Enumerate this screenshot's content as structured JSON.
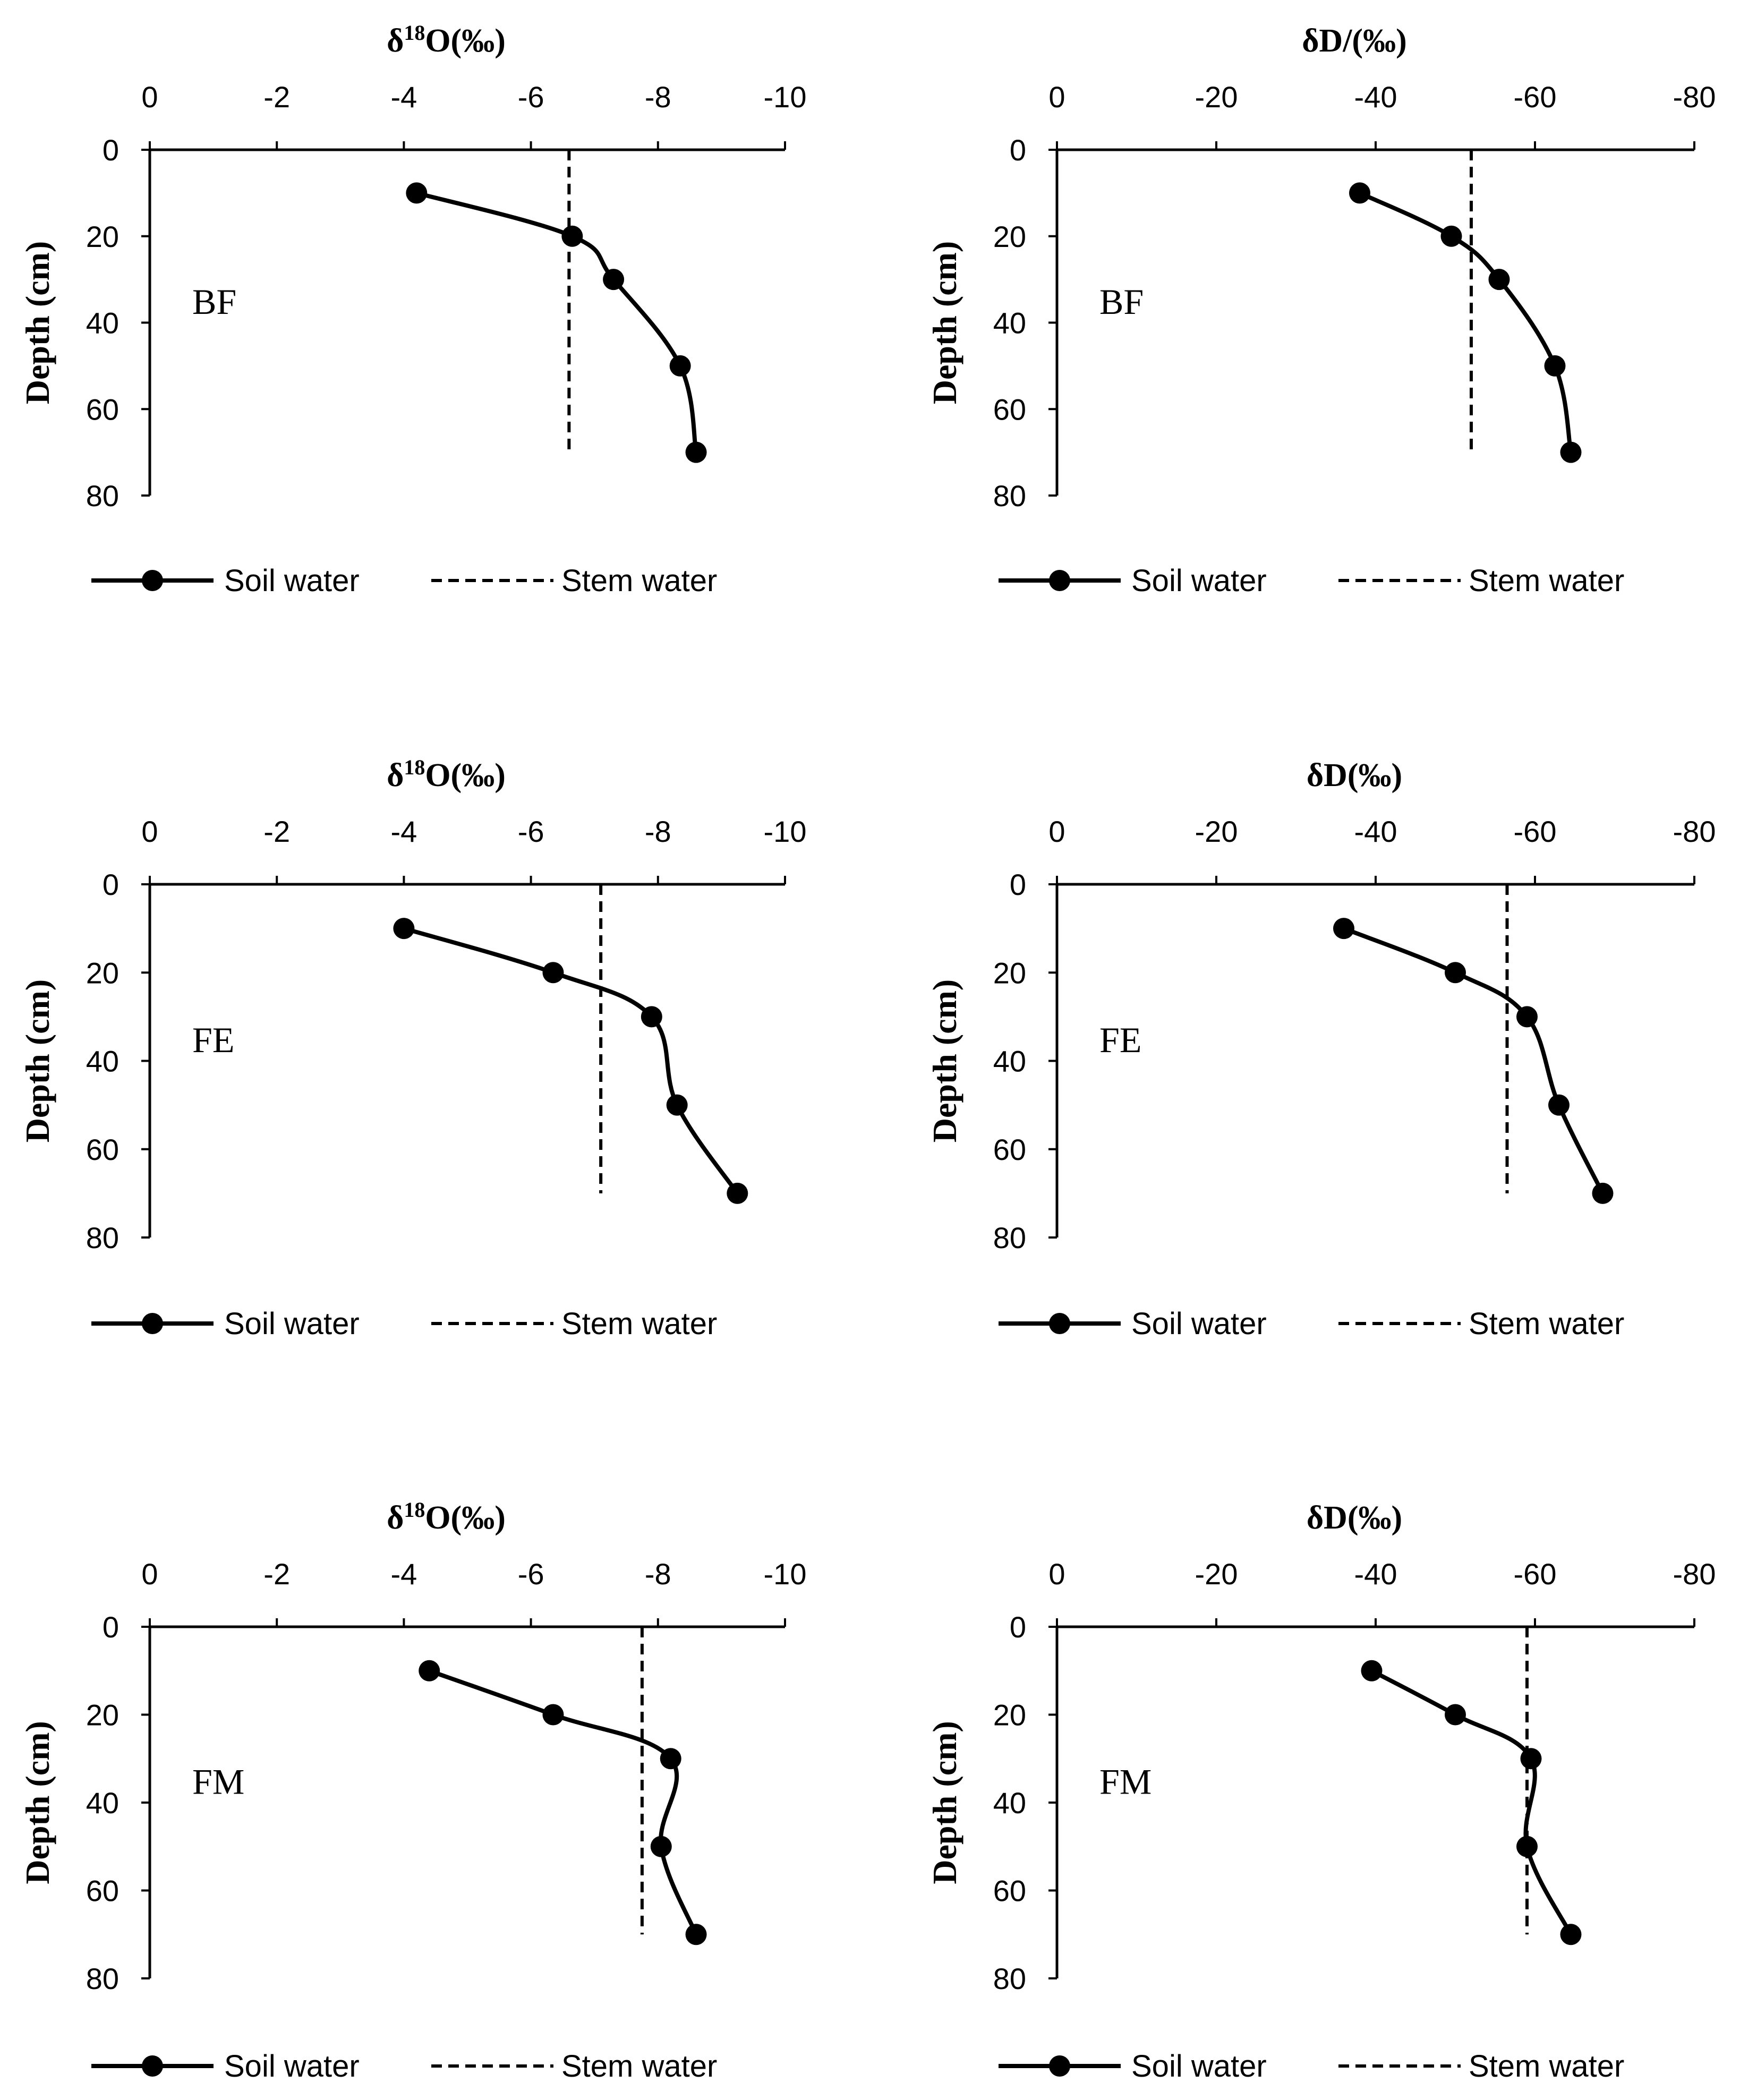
{
  "chart_data": [
    {
      "type": "line",
      "panel": "BF",
      "title": "δ18O(‰)",
      "xlabel": "δ18O(‰)",
      "ylabel": "Depth (cm)",
      "xlim": [
        0,
        -10
      ],
      "xticks": [
        "0",
        "-2",
        "-4",
        "-6",
        "-8",
        "-10"
      ],
      "ylim": [
        0,
        80
      ],
      "yticks": [
        "0",
        "20",
        "40",
        "60",
        "80"
      ],
      "series": [
        {
          "name": "Soil water",
          "x": [
            -4.2,
            -6.65,
            -7.3,
            -8.35,
            -8.6
          ],
          "y": [
            10,
            20,
            30,
            50,
            70
          ]
        },
        {
          "name": "Stem water",
          "x": [
            -6.6,
            -6.6
          ],
          "y": [
            0,
            70
          ]
        }
      ],
      "legend": [
        "Soil water",
        "Stem water"
      ],
      "legend_position": "bottom"
    },
    {
      "type": "line",
      "panel": "BF",
      "title": "δD/(‰)",
      "xlabel": "δD/(‰)",
      "ylabel": "Depth (cm)",
      "xlim": [
        0,
        -80
      ],
      "xticks": [
        "0",
        "-20",
        "-40",
        "-60",
        "-80"
      ],
      "ylim": [
        0,
        80
      ],
      "yticks": [
        "0",
        "20",
        "40",
        "60",
        "80"
      ],
      "series": [
        {
          "name": "Soil water",
          "x": [
            -38,
            -49.5,
            -55.5,
            -62.5,
            -64.5
          ],
          "y": [
            10,
            20,
            30,
            50,
            70
          ]
        },
        {
          "name": "Stem water",
          "x": [
            -52,
            -52
          ],
          "y": [
            0,
            70
          ]
        }
      ],
      "legend": [
        "Soil water",
        "Stem water"
      ],
      "legend_position": "bottom"
    },
    {
      "type": "line",
      "panel": "FE",
      "title": "δ18O(‰)",
      "xlabel": "δ18O(‰)",
      "ylabel": "Depth (cm)",
      "xlim": [
        0,
        -10
      ],
      "xticks": [
        "0",
        "-2",
        "-4",
        "-6",
        "-8",
        "-10"
      ],
      "ylim": [
        0,
        80
      ],
      "yticks": [
        "0",
        "20",
        "40",
        "60",
        "80"
      ],
      "series": [
        {
          "name": "Soil water",
          "x": [
            -4.0,
            -6.35,
            -7.9,
            -8.3,
            -9.25
          ],
          "y": [
            10,
            20,
            30,
            50,
            70
          ]
        },
        {
          "name": "Stem water",
          "x": [
            -7.1,
            -7.1
          ],
          "y": [
            0,
            70
          ]
        }
      ],
      "legend": [
        "Soil water",
        "Stem water"
      ],
      "legend_position": "bottom"
    },
    {
      "type": "line",
      "panel": "FE",
      "title": "δD(‰)",
      "xlabel": "δD(‰)",
      "ylabel": "Depth (cm)",
      "xlim": [
        0,
        -80
      ],
      "xticks": [
        "0",
        "-20",
        "-40",
        "-60",
        "-80"
      ],
      "ylim": [
        0,
        80
      ],
      "yticks": [
        "0",
        "20",
        "40",
        "60",
        "80"
      ],
      "series": [
        {
          "name": "Soil water",
          "x": [
            -36,
            -50,
            -59,
            -63,
            -68.5
          ],
          "y": [
            10,
            20,
            30,
            50,
            70
          ]
        },
        {
          "name": "Stem water",
          "x": [
            -56.5,
            -56.5
          ],
          "y": [
            0,
            70
          ]
        }
      ],
      "legend": [
        "Soil water",
        "Stem water"
      ],
      "legend_position": "bottom"
    },
    {
      "type": "line",
      "panel": "FM",
      "title": "δ18O(‰)",
      "xlabel": "δ18O(‰)",
      "ylabel": "Depth (cm)",
      "xlim": [
        0,
        -10
      ],
      "xticks": [
        "0",
        "-2",
        "-4",
        "-6",
        "-8",
        "-10"
      ],
      "ylim": [
        0,
        80
      ],
      "yticks": [
        "0",
        "20",
        "40",
        "60",
        "80"
      ],
      "series": [
        {
          "name": "Soil water",
          "x": [
            -4.4,
            -6.35,
            -8.2,
            -8.05,
            -8.6
          ],
          "y": [
            10,
            20,
            30,
            50,
            70
          ]
        },
        {
          "name": "Stem water",
          "x": [
            -7.75,
            -7.75
          ],
          "y": [
            0,
            70
          ]
        }
      ],
      "legend": [
        "Soil water",
        "Stem water"
      ],
      "legend_position": "bottom"
    },
    {
      "type": "line",
      "panel": "FM",
      "title": "δD(‰)",
      "xlabel": "δD(‰)",
      "ylabel": "Depth (cm)",
      "xlim": [
        0,
        -80
      ],
      "xticks": [
        "0",
        "-20",
        "-40",
        "-60",
        "-80"
      ],
      "ylim": [
        0,
        80
      ],
      "yticks": [
        "0",
        "20",
        "40",
        "60",
        "80"
      ],
      "series": [
        {
          "name": "Soil water",
          "x": [
            -39.5,
            -50,
            -59.5,
            -59,
            -64.5
          ],
          "y": [
            10,
            20,
            30,
            50,
            70
          ]
        },
        {
          "name": "Stem water",
          "x": [
            -59,
            -59
          ],
          "y": [
            0,
            70
          ]
        }
      ],
      "legend": [
        "Soil water",
        "Stem water"
      ],
      "legend_position": "bottom"
    }
  ]
}
